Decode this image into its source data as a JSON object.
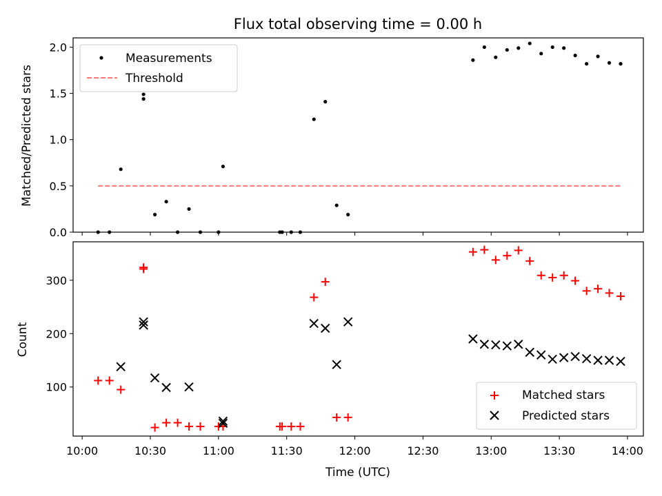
{
  "figure": {
    "title": "Flux total observing time = 0.00 h"
  },
  "chart_data": [
    {
      "type": "scatter",
      "title": "Flux total observing time = 0.00 h",
      "xlabel": "",
      "ylabel": "Matched/Predicted stars",
      "xlim": [
        "09:56",
        "14:07"
      ],
      "ylim": [
        0,
        2.1
      ],
      "yticks": [
        "0.0",
        "0.5",
        "1.0",
        "1.5",
        "2.0"
      ],
      "legend_position": "upper left",
      "series": [
        {
          "name": "Measurements",
          "marker": "dot",
          "color": "#000000",
          "points": [
            [
              "10:07",
              0.0
            ],
            [
              "10:12",
              0.0
            ],
            [
              "10:17",
              0.68
            ],
            [
              "10:27",
              1.44
            ],
            [
              "10:27",
              1.49
            ],
            [
              "10:32",
              0.19
            ],
            [
              "10:37",
              0.33
            ],
            [
              "10:42",
              0.0
            ],
            [
              "10:47",
              0.25
            ],
            [
              "10:52",
              0.0
            ],
            [
              "11:00",
              0.0
            ],
            [
              "11:02",
              0.71
            ],
            [
              "11:27",
              0.0
            ],
            [
              "11:28",
              0.0
            ],
            [
              "11:32",
              0.0
            ],
            [
              "11:36",
              0.0
            ],
            [
              "11:42",
              1.22
            ],
            [
              "11:47",
              1.41
            ],
            [
              "11:52",
              0.29
            ],
            [
              "11:57",
              0.19
            ],
            [
              "12:52",
              1.86
            ],
            [
              "12:57",
              2.0
            ],
            [
              "13:02",
              1.89
            ],
            [
              "13:07",
              1.97
            ],
            [
              "13:12",
              1.99
            ],
            [
              "13:17",
              2.04
            ],
            [
              "13:22",
              1.93
            ],
            [
              "13:27",
              2.0
            ],
            [
              "13:32",
              1.99
            ],
            [
              "13:37",
              1.91
            ],
            [
              "13:42",
              1.82
            ],
            [
              "13:47",
              1.9
            ],
            [
              "13:52",
              1.83
            ],
            [
              "13:57",
              1.82
            ]
          ]
        },
        {
          "name": "Threshold",
          "style": "dashed",
          "color": "#ff7777",
          "x": [
            "10:07",
            "13:57"
          ],
          "values": [
            0.5,
            0.5
          ]
        }
      ]
    },
    {
      "type": "scatter",
      "title": "",
      "xlabel": "Time (UTC)",
      "ylabel": "Count",
      "xlim": [
        "09:56",
        "14:07"
      ],
      "ylim": [
        8,
        372
      ],
      "yticks": [
        "100",
        "200",
        "300"
      ],
      "xticks": [
        "10:00",
        "10:30",
        "11:00",
        "11:30",
        "12:00",
        "12:30",
        "13:00",
        "13:30",
        "14:00"
      ],
      "legend_position": "lower right",
      "series": [
        {
          "name": "Matched stars",
          "marker": "plus",
          "color": "#ff0000",
          "points": [
            [
              "10:07",
              112
            ],
            [
              "10:12",
              112
            ],
            [
              "10:17",
              95
            ],
            [
              "10:27",
              321
            ],
            [
              "10:27",
              324
            ],
            [
              "10:32",
              24
            ],
            [
              "10:37",
              33
            ],
            [
              "10:42",
              33
            ],
            [
              "10:47",
              26
            ],
            [
              "10:52",
              26
            ],
            [
              "11:00",
              26
            ],
            [
              "11:02",
              26
            ],
            [
              "11:27",
              26
            ],
            [
              "11:28",
              26
            ],
            [
              "11:32",
              26
            ],
            [
              "11:36",
              26
            ],
            [
              "11:42",
              268
            ],
            [
              "11:47",
              297
            ],
            [
              "11:52",
              43
            ],
            [
              "11:57",
              43
            ],
            [
              "12:52",
              353
            ],
            [
              "12:57",
              357
            ],
            [
              "13:02",
              338
            ],
            [
              "13:07",
              346
            ],
            [
              "13:12",
              356
            ],
            [
              "13:17",
              336
            ],
            [
              "13:22",
              309
            ],
            [
              "13:27",
              305
            ],
            [
              "13:32",
              309
            ],
            [
              "13:37",
              299
            ],
            [
              "13:42",
              280
            ],
            [
              "13:47",
              284
            ],
            [
              "13:52",
              276
            ],
            [
              "13:57",
              270
            ]
          ]
        },
        {
          "name": "Predicted stars",
          "marker": "x",
          "color": "#000000",
          "points": [
            [
              "10:17",
              138
            ],
            [
              "10:27",
              216
            ],
            [
              "10:27",
              222
            ],
            [
              "10:32",
              117
            ],
            [
              "10:37",
              99
            ],
            [
              "10:47",
              100
            ],
            [
              "11:02",
              36
            ],
            [
              "11:02",
              32
            ],
            [
              "11:42",
              219
            ],
            [
              "11:47",
              210
            ],
            [
              "11:52",
              142
            ],
            [
              "11:57",
              222
            ],
            [
              "12:52",
              190
            ],
            [
              "12:57",
              180
            ],
            [
              "13:02",
              179
            ],
            [
              "13:07",
              177
            ],
            [
              "13:12",
              180
            ],
            [
              "13:17",
              165
            ],
            [
              "13:22",
              160
            ],
            [
              "13:27",
              152
            ],
            [
              "13:32",
              155
            ],
            [
              "13:37",
              157
            ],
            [
              "13:42",
              153
            ],
            [
              "13:47",
              150
            ],
            [
              "13:52",
              150
            ],
            [
              "13:57",
              148
            ]
          ]
        }
      ]
    }
  ]
}
